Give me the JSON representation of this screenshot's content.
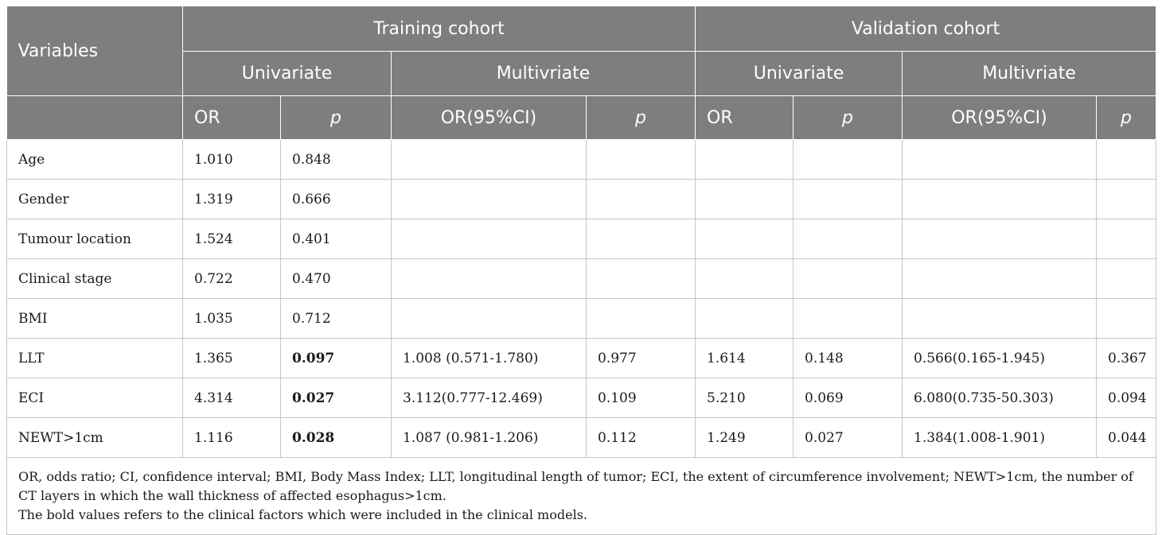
{
  "header": {
    "variables": "Variables",
    "training_cohort": "Training cohort",
    "validation_cohort": "Validation cohort",
    "univariate": "Univariate",
    "multivariate": "Multivriate",
    "or": "OR",
    "p": "p",
    "or_ci": "OR(95%CI)"
  },
  "rows": [
    {
      "variable": "Age",
      "t_or": "1.010",
      "t_p": "0.848",
      "t_mor": "",
      "t_mp": "",
      "v_or": "",
      "v_p": "",
      "v_mor": "",
      "v_mp": ""
    },
    {
      "variable": "Gender",
      "t_or": "1.319",
      "t_p": "0.666",
      "t_mor": "",
      "t_mp": "",
      "v_or": "",
      "v_p": "",
      "v_mor": "",
      "v_mp": ""
    },
    {
      "variable": "Tumour location",
      "t_or": "1.524",
      "t_p": "0.401",
      "t_mor": "",
      "t_mp": "",
      "v_or": "",
      "v_p": "",
      "v_mor": "",
      "v_mp": ""
    },
    {
      "variable": "Clinical stage",
      "t_or": "0.722",
      "t_p": "0.470",
      "t_mor": "",
      "t_mp": "",
      "v_or": "",
      "v_p": "",
      "v_mor": "",
      "v_mp": ""
    },
    {
      "variable": "BMI",
      "t_or": "1.035",
      "t_p": "0.712",
      "t_mor": "",
      "t_mp": "",
      "v_or": "",
      "v_p": "",
      "v_mor": "",
      "v_mp": ""
    },
    {
      "variable": "LLT",
      "t_or": "1.365",
      "t_p": "0.097",
      "t_mor": "1.008 (0.571-1.780)",
      "t_mp": "0.977",
      "v_or": "1.614",
      "v_p": "0.148",
      "v_mor": "0.566(0.165-1.945)",
      "v_mp": "0.367"
    },
    {
      "variable": "ECI",
      "t_or": "4.314",
      "t_p": "0.027",
      "t_mor": "3.112(0.777-12.469)",
      "t_mp": "0.109",
      "v_or": "5.210",
      "v_p": "0.069",
      "v_mor": "6.080(0.735-50.303)",
      "v_mp": "0.094"
    },
    {
      "variable": "NEWT>1cm",
      "t_or": "1.116",
      "t_p": "0.028",
      "t_mor": "1.087 (0.981-1.206)",
      "t_mp": "0.112",
      "v_or": "1.249",
      "v_p": "0.027",
      "v_mor": "1.384(1.008-1.901)",
      "v_mp": "0.044"
    }
  ],
  "footnote": {
    "line1": "OR, odds ratio; CI, confidence interval; BMI, Body Mass Index; LLT, longitudinal length of tumor; ECI, the extent of circumference involvement; NEWT>1cm, the number of CT layers in which the wall thickness of affected esophagus>1cm.",
    "line2": "The bold values refers to the clinical factors which were included in the clinical models."
  }
}
